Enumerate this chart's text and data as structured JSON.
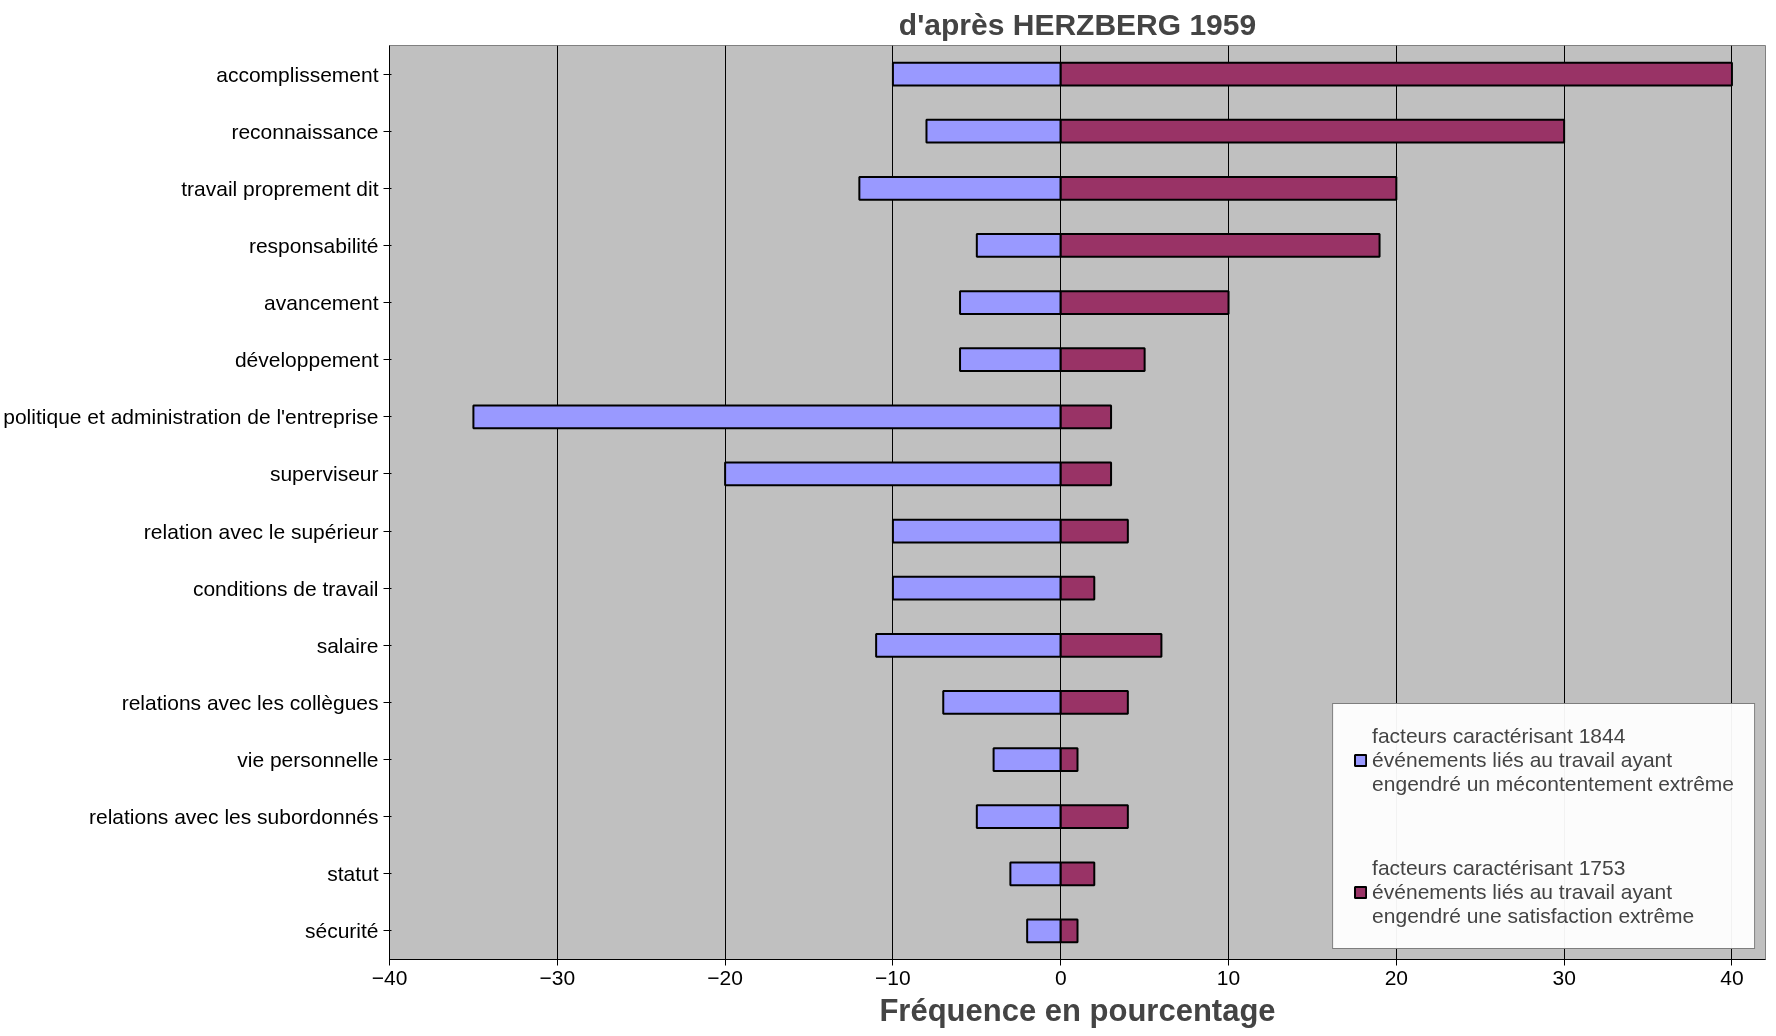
{
  "chart_data": {
    "type": "bar",
    "orientation": "horizontal",
    "title": "d'après HERZBERG 1959",
    "xlabel": "Fréquence en pourcentage",
    "categories": [
      "accomplissement",
      "reconnaissance",
      "travail proprement dit",
      "responsabilité",
      "avancement",
      "développement",
      "politique et administration de l'entreprise",
      "superviseur",
      "relation avec le supérieur",
      "conditions de travail",
      "salaire",
      "relations avec les collègues",
      "vie personnelle",
      "relations avec les subordonnés",
      "statut",
      "sécurité"
    ],
    "series": [
      {
        "name": "facteurs caractérisant 1844 événements liés au travail ayant engendré un mécontentement extrême",
        "color": "#9999ff",
        "values": [
          -10,
          -8,
          -12,
          -5,
          -6,
          -6,
          -35,
          -20,
          -10,
          -10,
          -11,
          -7,
          -4,
          -5,
          -3,
          -2
        ]
      },
      {
        "name": "facteurs caractérisant 1753 événements liés au travail ayant engendré une satisfaction extrême",
        "color": "#993366",
        "values": [
          40,
          30,
          20,
          19,
          10,
          5,
          3,
          3,
          4,
          2,
          6,
          4,
          1,
          4,
          2,
          1
        ]
      }
    ],
    "xlim": [
      -40,
      42
    ],
    "xticks": [
      -40,
      -30,
      -20,
      -10,
      0,
      10,
      20,
      30,
      40
    ],
    "grid": "x",
    "legend": "bottom right",
    "stacked": true
  }
}
